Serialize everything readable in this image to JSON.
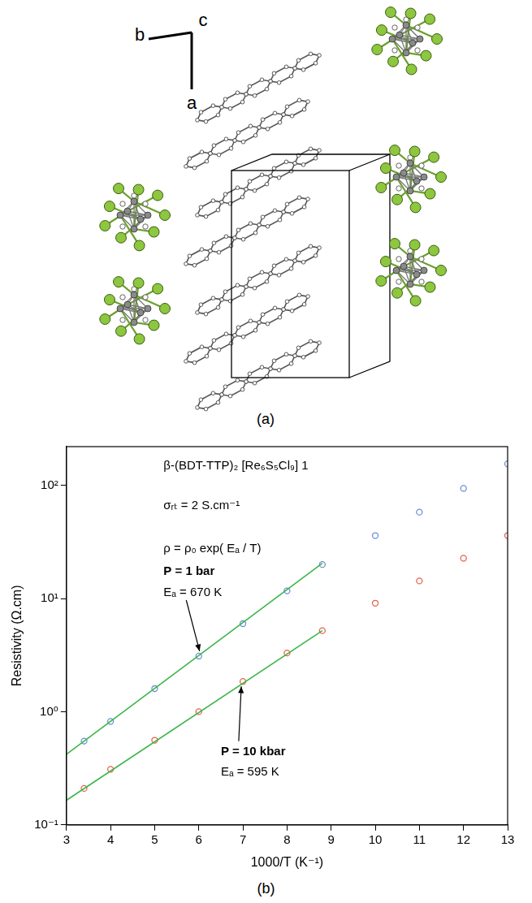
{
  "panel_a": {
    "axis_labels": [
      "b",
      "c",
      "a"
    ],
    "caption": "(a)"
  },
  "chart_data": {
    "type": "scatter",
    "title": "β-(BDT-TTP)₂ [Re₆S₅Cl₉] 1",
    "annotations": [
      "σᵣₜ = 2 S.cm⁻¹",
      "ρ = ρ₀ exp( Eₐ / T)",
      "P = 1 bar",
      "Eₐ = 670 K",
      "P = 10 kbar",
      "Eₐ = 595 K"
    ],
    "x_label": "1000/T (K⁻¹)",
    "y_label": "Resistivity (Ω.cm)",
    "xlim": [
      3,
      13
    ],
    "xticks": [
      3,
      4,
      5,
      6,
      7,
      8,
      9,
      10,
      11,
      12,
      13
    ],
    "ylim": [
      0.1,
      220
    ],
    "yticks": [
      {
        "value": 0.1,
        "label": "10⁻¹"
      },
      {
        "value": 1,
        "label": "10⁰"
      },
      {
        "value": 10,
        "label": "10¹"
      },
      {
        "value": 100,
        "label": "10²"
      }
    ],
    "log": "y",
    "grid": false,
    "series": [
      {
        "color": "#6b8fd6",
        "marker": "circle",
        "line_style": "none",
        "x": [
          3.4,
          4,
          5,
          6,
          7,
          8,
          8.8,
          10,
          11,
          12,
          13
        ],
        "values": [
          0.55,
          0.82,
          1.6,
          3.1,
          6.0,
          11.7,
          20,
          36,
          58,
          94,
          155
        ]
      },
      {
        "color": "#e8604c",
        "marker": "circle",
        "line_style": "none",
        "x": [
          3.4,
          4,
          5,
          6,
          7,
          8,
          8.8,
          10,
          11,
          12,
          13
        ],
        "values": [
          0.21,
          0.31,
          0.56,
          1.0,
          1.85,
          3.3,
          5.2,
          9.1,
          14.3,
          22.7,
          36
        ]
      },
      {
        "color": "#3cb44b",
        "marker": "none",
        "line_style": "solid",
        "x": [
          3,
          8.8
        ],
        "values": [
          0.42,
          20.5
        ]
      },
      {
        "color": "#3cb44b",
        "marker": "none",
        "line_style": "solid",
        "x": [
          3,
          8.8
        ],
        "values": [
          0.165,
          5.2
        ]
      }
    ]
  },
  "panel_b_caption": "(b)"
}
